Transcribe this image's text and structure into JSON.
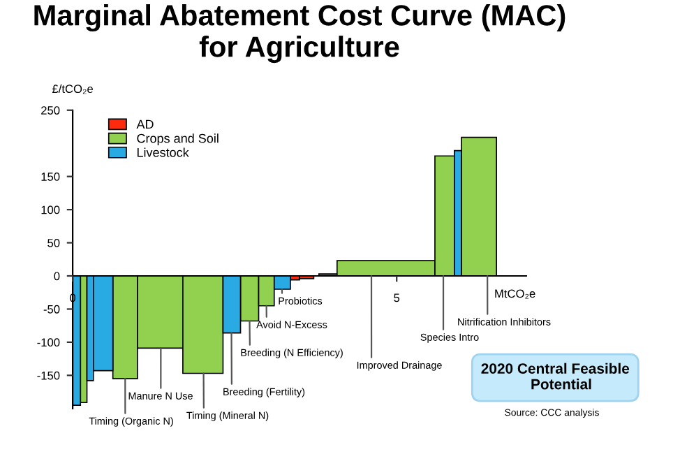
{
  "chart_data": {
    "type": "histogram",
    "title": "Marginal Abatement Cost Curve (MAC)\nfor Agriculture",
    "ylabel": "£/tCO₂e",
    "xlabel": "MtCO₂e",
    "bins": [
      0,
      0.12,
      0.22,
      0.32,
      0.62,
      1.0,
      1.7,
      2.32,
      2.59,
      2.87,
      3.11,
      3.36,
      3.5,
      3.72,
      3.8,
      4.08,
      5.59,
      5.89,
      6.0,
      6.54
    ],
    "series": [
      {
        "name": "AD",
        "color": "#ff2a0d",
        "values": [
          null,
          null,
          null,
          null,
          null,
          null,
          null,
          null,
          null,
          null,
          null,
          -6,
          -4,
          null,
          3,
          null,
          null,
          null,
          null
        ]
      },
      {
        "name": "Crops and Soil",
        "color": "#92d050",
        "values": [
          null,
          -191,
          null,
          null,
          -155,
          -109,
          -147,
          null,
          -68,
          -45,
          null,
          null,
          null,
          null,
          null,
          23,
          181,
          null,
          209
        ]
      },
      {
        "name": "Livestock",
        "color": "#29aae2",
        "values": [
          -195,
          null,
          -158,
          -143,
          null,
          null,
          null,
          -86,
          null,
          null,
          -20,
          null,
          null,
          null,
          null,
          null,
          null,
          189,
          null
        ]
      }
    ],
    "xlim": [
      0,
      7
    ],
    "xticks": [
      0,
      5
    ],
    "ylim": [
      -200,
      250
    ],
    "yticks": [
      -150,
      -100,
      -50,
      0,
      50,
      100,
      150,
      250
    ],
    "legend": "top left",
    "grid": false,
    "annotations": [
      {
        "text": "Timing (Organic N)",
        "x": 0.81,
        "y": -155
      },
      {
        "text": "Manure N Use",
        "x": 1.36,
        "y": -109
      },
      {
        "text": "Timing (Mineral N)",
        "x": 2.02,
        "y": -147
      },
      {
        "text": "Breeding (Fertility)",
        "x": 2.45,
        "y": -86
      },
      {
        "text": "Breeding (N Efficiency)",
        "x": 2.73,
        "y": -68
      },
      {
        "text": "Avoid N-Excess",
        "x": 2.99,
        "y": -45
      },
      {
        "text": "Probiotics",
        "x": 3.23,
        "y": -20
      },
      {
        "text": "Improved Drainage",
        "x": 4.61,
        "y": 0
      },
      {
        "text": "Species Intro",
        "x": 5.72,
        "y": 0
      },
      {
        "text": "Nitrification Inhibitors",
        "x": 6.4,
        "y": 0
      },
      "2020 Central Feasible\n   Potential",
      "Source: CCC analysis"
    ]
  }
}
